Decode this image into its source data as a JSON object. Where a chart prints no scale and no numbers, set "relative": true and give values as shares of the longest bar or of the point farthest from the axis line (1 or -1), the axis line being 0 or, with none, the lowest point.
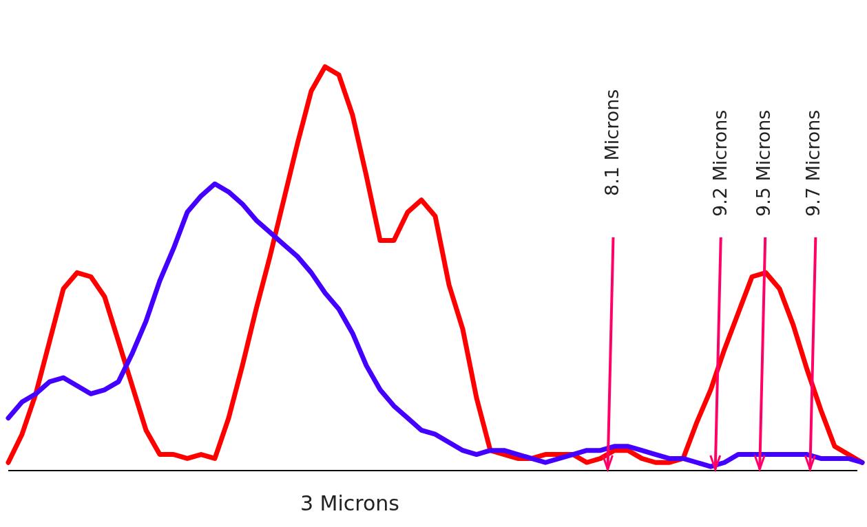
{
  "chart_data": {
    "type": "line",
    "relative": true,
    "marker": "none",
    "line_style": "solid",
    "categories": [
      null,
      null,
      null,
      null,
      null,
      null,
      null,
      null,
      null,
      null,
      null,
      null,
      null,
      null,
      null,
      null,
      null,
      null,
      null,
      null,
      null,
      null,
      null,
      null,
      null,
      null,
      null,
      null,
      null,
      null,
      null,
      null,
      null,
      null,
      null,
      null,
      null,
      null,
      null,
      null,
      null,
      null,
      null,
      null,
      null,
      null,
      null,
      null,
      null,
      null,
      null,
      null,
      null,
      null,
      null,
      null,
      null,
      null,
      null,
      null,
      null,
      null,
      null
    ],
    "series": [
      {
        "color": "#ff0000",
        "values": [
          0.02,
          0.09,
          0.19,
          0.32,
          0.45,
          0.49,
          0.48,
          0.43,
          0.32,
          0.21,
          0.1,
          0.04,
          0.04,
          0.03,
          0.04,
          0.03,
          0.13,
          0.26,
          0.4,
          0.53,
          0.67,
          0.81,
          0.94,
          1.0,
          0.98,
          0.88,
          0.73,
          0.57,
          0.57,
          0.64,
          0.67,
          0.63,
          0.46,
          0.35,
          0.18,
          0.05,
          0.04,
          0.03,
          0.03,
          0.04,
          0.04,
          0.04,
          0.02,
          0.03,
          0.05,
          0.05,
          0.03,
          0.02,
          0.02,
          0.03,
          0.12,
          0.2,
          0.3,
          0.39,
          0.48,
          0.49,
          0.45,
          0.36,
          0.25,
          0.15,
          0.06,
          0.04,
          0.02
        ]
      },
      {
        "color": "#4400ff",
        "values": [
          0.13,
          0.17,
          0.19,
          0.22,
          0.23,
          0.21,
          0.19,
          0.2,
          0.22,
          0.29,
          0.37,
          0.47,
          0.55,
          0.64,
          0.68,
          0.71,
          0.69,
          0.66,
          0.62,
          0.59,
          0.56,
          0.53,
          0.49,
          0.44,
          0.4,
          0.34,
          0.26,
          0.2,
          0.16,
          0.13,
          0.1,
          0.09,
          0.07,
          0.05,
          0.04,
          0.05,
          0.05,
          0.04,
          0.03,
          0.02,
          0.03,
          0.04,
          0.05,
          0.05,
          0.06,
          0.06,
          0.05,
          0.04,
          0.03,
          0.03,
          0.02,
          0.01,
          0.02,
          0.04,
          0.04,
          0.04,
          0.04,
          0.04,
          0.04,
          0.03,
          0.03,
          0.03,
          0.02
        ]
      }
    ],
    "annotations": [
      "3 Microns",
      "8.1 Microns",
      "9.2 Microns",
      "9.5 Microns",
      "9.7 Microns"
    ]
  }
}
